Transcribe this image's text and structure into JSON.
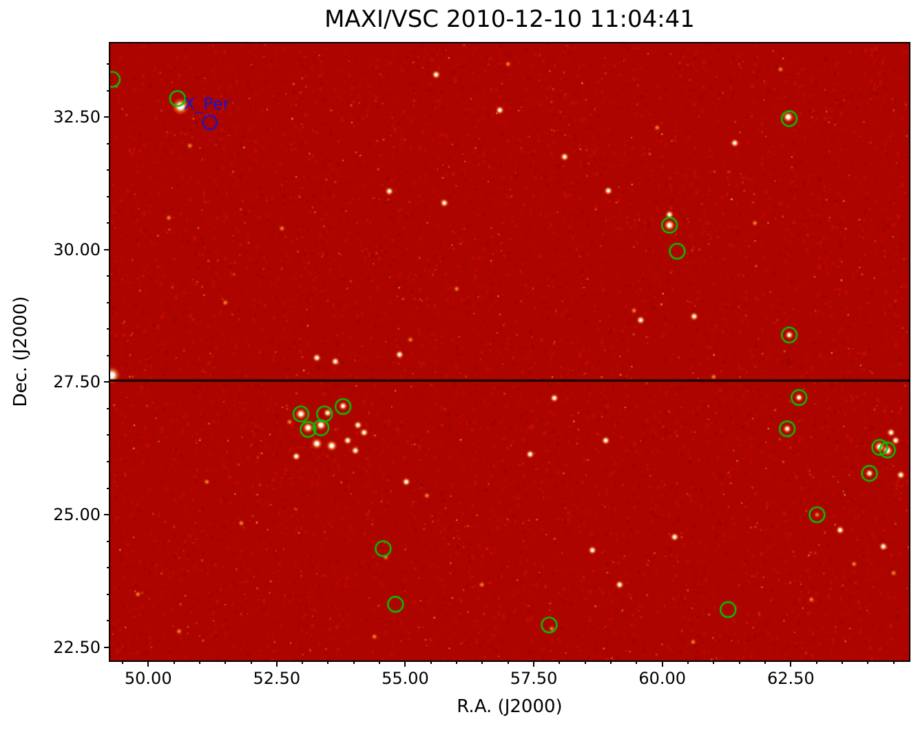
{
  "chart_data": {
    "type": "heatmap",
    "title": "MAXI/VSC 2010-12-10 11:04:41",
    "xlabel": "R.A. (J2000)",
    "ylabel": "Dec. (J2000)",
    "xlim": [
      49.26,
      64.8
    ],
    "ylim": [
      22.25,
      33.89
    ],
    "x_tick_values": [
      50.0,
      52.5,
      55.0,
      57.5,
      60.0,
      62.5
    ],
    "x_tick_labels": [
      "50.00",
      "52.50",
      "55.00",
      "57.50",
      "60.00",
      "62.50"
    ],
    "y_tick_values": [
      22.5,
      25.0,
      27.5,
      30.0,
      32.5
    ],
    "y_tick_labels": [
      "22.50",
      "25.00",
      "27.50",
      "30.00",
      "32.50"
    ],
    "minor_tick_step": 0.5,
    "grid": false,
    "scan_line_dec": 27.53,
    "colors": {
      "field_base": "#ae0400",
      "marker_green": "#00c800",
      "annotation_blue": "#1515cf",
      "scan_line": "#000000",
      "frame": "#000000"
    },
    "annotations": [
      {
        "label": "X_Per",
        "ra": 51.2,
        "dec": 32.4,
        "color": "#1515cf",
        "circle_radius_px": 10
      }
    ],
    "green_circle_radius_px": 11,
    "green_circles": [
      [
        49.3,
        33.21
      ],
      [
        50.57,
        32.85
      ],
      [
        62.47,
        32.47
      ],
      [
        60.14,
        30.46
      ],
      [
        60.29,
        29.97
      ],
      [
        62.47,
        28.39
      ],
      [
        62.66,
        27.21
      ],
      [
        62.43,
        26.62
      ],
      [
        52.97,
        26.9
      ],
      [
        53.11,
        26.61
      ],
      [
        53.43,
        26.9
      ],
      [
        53.36,
        26.64
      ],
      [
        53.79,
        27.04
      ],
      [
        64.23,
        26.27
      ],
      [
        64.38,
        26.22
      ],
      [
        64.03,
        25.78
      ],
      [
        63.01,
        25.0
      ],
      [
        54.57,
        24.36
      ],
      [
        54.81,
        23.31
      ],
      [
        57.8,
        22.92
      ],
      [
        61.28,
        23.21
      ]
    ],
    "bright_stars": [
      [
        50.63,
        32.7,
        4
      ],
      [
        50.81,
        31.96,
        1
      ],
      [
        49.29,
        27.63,
        4
      ],
      [
        56.84,
        32.63,
        2
      ],
      [
        62.45,
        32.5,
        3
      ],
      [
        61.41,
        32.01,
        2
      ],
      [
        58.1,
        31.75,
        2
      ],
      [
        54.69,
        31.1,
        2
      ],
      [
        58.95,
        31.11,
        2
      ],
      [
        55.76,
        30.88,
        2
      ],
      [
        60.14,
        30.66,
        2
      ],
      [
        60.14,
        30.46,
        3
      ],
      [
        59.58,
        28.67,
        2
      ],
      [
        59.45,
        28.85,
        1
      ],
      [
        60.62,
        28.74,
        2
      ],
      [
        62.47,
        28.39,
        2
      ],
      [
        53.28,
        27.96,
        2
      ],
      [
        53.64,
        27.89,
        2
      ],
      [
        54.89,
        28.02,
        2
      ],
      [
        62.66,
        27.21,
        2
      ],
      [
        62.43,
        26.62,
        2
      ],
      [
        52.97,
        26.9,
        3
      ],
      [
        53.11,
        26.64,
        3
      ],
      [
        53.36,
        26.69,
        3
      ],
      [
        53.49,
        26.92,
        2
      ],
      [
        53.79,
        27.05,
        2
      ],
      [
        53.28,
        26.34,
        3
      ],
      [
        53.57,
        26.3,
        3
      ],
      [
        53.88,
        26.4,
        2
      ],
      [
        54.08,
        26.69,
        2
      ],
      [
        52.88,
        26.1,
        2
      ],
      [
        54.03,
        26.21,
        2
      ],
      [
        54.2,
        26.55,
        2
      ],
      [
        52.75,
        26.75,
        1
      ],
      [
        64.23,
        26.28,
        3
      ],
      [
        64.38,
        26.21,
        3
      ],
      [
        64.03,
        25.78,
        2
      ],
      [
        64.54,
        26.4,
        2
      ],
      [
        64.64,
        25.75,
        2
      ],
      [
        64.45,
        26.55,
        2
      ],
      [
        63.01,
        25.0,
        1
      ],
      [
        55.02,
        25.62,
        2
      ],
      [
        55.42,
        25.36,
        1
      ],
      [
        57.43,
        26.14,
        2
      ],
      [
        58.64,
        24.33,
        2
      ],
      [
        59.17,
        23.68,
        2
      ],
      [
        60.24,
        24.58,
        2
      ],
      [
        56.49,
        23.68,
        1
      ],
      [
        54.62,
        24.2,
        1
      ],
      [
        51.81,
        24.84,
        1
      ],
      [
        51.14,
        25.62,
        1
      ],
      [
        63.46,
        24.71,
        2
      ],
      [
        63.73,
        24.07,
        1
      ],
      [
        56.0,
        29.26,
        1
      ],
      [
        55.1,
        28.3,
        1
      ],
      [
        57.9,
        27.2,
        2
      ],
      [
        58.9,
        26.4,
        2
      ],
      [
        61.0,
        27.6,
        1
      ],
      [
        61.8,
        30.5,
        1
      ],
      [
        59.9,
        32.3,
        1
      ],
      [
        55.6,
        33.3,
        2
      ],
      [
        57.0,
        33.5,
        1
      ],
      [
        62.3,
        33.4,
        1
      ],
      [
        52.6,
        30.4,
        1
      ],
      [
        51.5,
        29.0,
        1
      ],
      [
        50.4,
        30.6,
        1
      ],
      [
        54.4,
        22.7,
        1
      ],
      [
        57.85,
        22.85,
        1
      ],
      [
        60.6,
        22.6,
        1
      ],
      [
        62.9,
        23.4,
        1
      ],
      [
        64.3,
        24.4,
        2
      ],
      [
        64.5,
        23.9,
        1
      ],
      [
        49.8,
        23.5,
        1
      ],
      [
        50.6,
        22.8,
        1
      ]
    ]
  }
}
